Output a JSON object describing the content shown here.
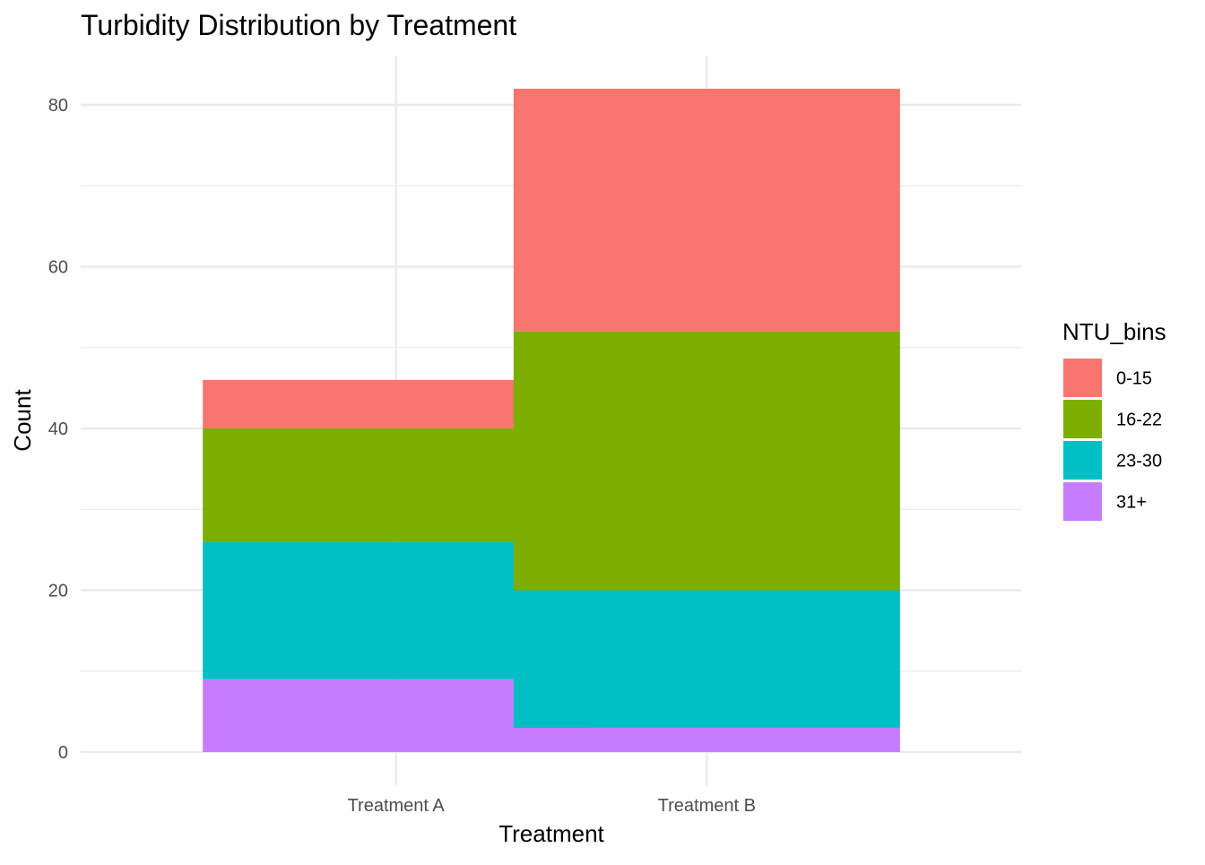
{
  "chart_data": {
    "type": "bar",
    "stacked": true,
    "title": "Turbidity Distribution by Treatment",
    "xlabel": "Treatment",
    "ylabel": "Count",
    "categories": [
      "Treatment A",
      "Treatment B"
    ],
    "series": [
      {
        "name": "0-15",
        "color": "#F8766D",
        "values": [
          6,
          30
        ]
      },
      {
        "name": "16-22",
        "color": "#7CAE00",
        "values": [
          14,
          32
        ]
      },
      {
        "name": "23-30",
        "color": "#00BFC4",
        "values": [
          17,
          17
        ]
      },
      {
        "name": "31+",
        "color": "#C77CFF",
        "values": [
          9,
          3
        ]
      }
    ],
    "ylim": [
      0,
      86
    ],
    "yticks": [
      0,
      20,
      40,
      60,
      80
    ],
    "grid": true,
    "legend": {
      "title": "NTU_bins",
      "position": "right"
    }
  }
}
